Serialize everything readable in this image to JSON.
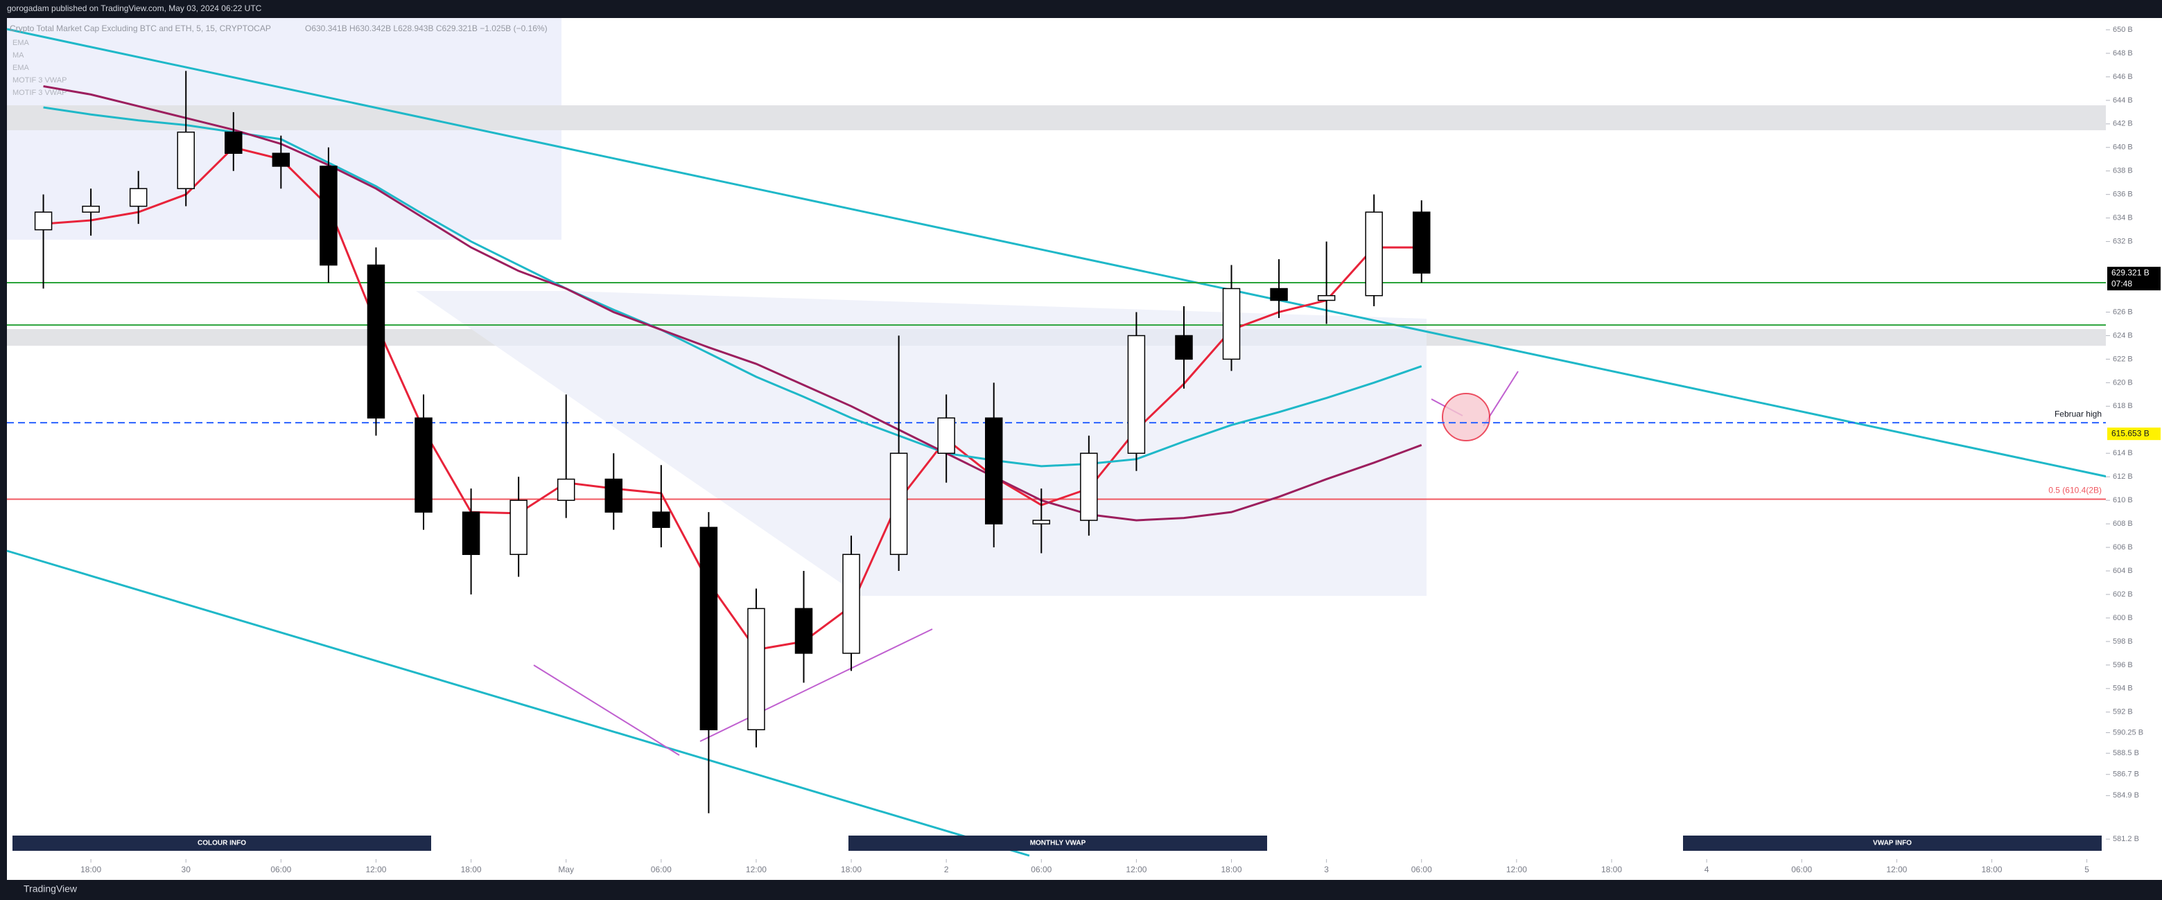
{
  "header": {
    "publisher": "gorogadam published on TradingView.com, May 03, 2024 06:22 UTC"
  },
  "legend_items": [
    "EMA",
    "MA",
    "EMA",
    "MOTIF 3 VWAP",
    "MOTIF 3 VWAP"
  ],
  "buttons": [
    "COLOUR INFO",
    "MONTHLY VWAP",
    "VWAP INFO"
  ],
  "footer": {
    "brand": "TradingView"
  },
  "chart_data": {
    "type": "candlestick",
    "title": "Crypto Total Market Cap Excluding BTC and ETH, 5, 15, CRYPTOCAP",
    "ohlc_summary": "O630.341B H630.342B L628.943B C629.321B −1.025B (−0.16%)",
    "x": [
      -9,
      -6,
      -3,
      0,
      3,
      6,
      9,
      12,
      15,
      18,
      21,
      24,
      27,
      30,
      33,
      36,
      39,
      42,
      45,
      48,
      51,
      54,
      57,
      60,
      63,
      66,
      69,
      72,
      75,
      78
    ],
    "open": [
      633,
      634.5,
      635,
      636.5,
      641.3,
      639.5,
      638.4,
      630,
      617,
      609,
      605.4,
      610,
      611.8,
      609,
      607.7,
      590.5,
      600.8,
      597,
      605.4,
      614,
      617,
      608,
      608.3,
      614,
      624,
      622,
      628,
      627,
      627.4,
      634.5
    ],
    "high": [
      636,
      636.5,
      638,
      646.5,
      643,
      641,
      640,
      631.5,
      619,
      611,
      612,
      619,
      614,
      613,
      609,
      602.5,
      604,
      607,
      624,
      619,
      620,
      611,
      615.5,
      626,
      626.5,
      630,
      630.5,
      632,
      636,
      635.5
    ],
    "low": [
      628,
      632.5,
      633.5,
      635,
      638,
      636.5,
      628.5,
      615.5,
      607.5,
      602,
      603.5,
      608.5,
      607.5,
      606,
      583.4,
      589,
      594.5,
      595.5,
      604,
      611.5,
      606,
      605.5,
      607,
      612.5,
      619.5,
      621,
      625.5,
      625,
      626.5,
      628.5
    ],
    "close": [
      634.5,
      635,
      636.5,
      641.3,
      639.5,
      638.4,
      630,
      617,
      609,
      605.4,
      610,
      611.8,
      609,
      607.7,
      590.5,
      600.8,
      597,
      605.4,
      614,
      617,
      608,
      608.3,
      614,
      624,
      622,
      628,
      627,
      627.4,
      634.5,
      629.321
    ],
    "up_color": "#ffffff",
    "down_color": "#000000",
    "series": [
      {
        "name": "EMA",
        "color": "#e8233a",
        "values": [
          633.5,
          633.8,
          634.5,
          636,
          640,
          639,
          635,
          625,
          616,
          609,
          608.9,
          611.5,
          611,
          610.6,
          603,
          597.3,
          598,
          601,
          610,
          615.2,
          612,
          609.6,
          611,
          616,
          619.9,
          624.5,
          626,
          627,
          631.5,
          631.5
        ]
      },
      {
        "name": "MA",
        "color": "#1fb8c8",
        "values": [
          643.4,
          642.8,
          642.3,
          641.9,
          641.3,
          640.7,
          638.7,
          636.7,
          634.3,
          632,
          630,
          628,
          626.2,
          624.5,
          622.5,
          620.5,
          618.8,
          617,
          615.5,
          614,
          613.4,
          612.9,
          613.1,
          613.5,
          615,
          616.4,
          617.5,
          618.7,
          620,
          621.4
        ]
      },
      {
        "name": "EMA",
        "color": "#9c1f5e",
        "values": [
          645.2,
          644.5,
          643.5,
          642.5,
          641.5,
          640.3,
          638.5,
          636.5,
          634,
          631.5,
          629.5,
          628,
          626,
          624.5,
          623,
          621.6,
          619.8,
          618,
          616,
          614,
          612,
          610,
          608.8,
          608.3,
          608.5,
          609,
          610.3,
          611.8,
          613.2,
          614.7
        ]
      }
    ],
    "levels": [
      {
        "value": 628.5,
        "color": "#2aa33a"
      },
      {
        "value": 624.9,
        "color": "#2aa33a"
      },
      {
        "value": 616.6,
        "color": "#2962ff",
        "label": "Februar high"
      },
      {
        "value": 610.1,
        "color": "#f05860",
        "label": "0.5 (610.4(2B)"
      }
    ],
    "price_badges": [
      {
        "value": 629.321,
        "label": "629.321 B",
        "sublabel": "07:48",
        "color": "#000000"
      },
      {
        "value": 615.653,
        "label": "615.653 B",
        "color": "#fff200"
      }
    ],
    "xlim": [
      -11.3,
      121.2
    ],
    "ylim": [
      579.5,
      651
    ],
    "xticks": [
      {
        "value": -6,
        "label": "18:00"
      },
      {
        "value": 0,
        "label": "30"
      },
      {
        "value": 6,
        "label": "06:00"
      },
      {
        "value": 12,
        "label": "12:00"
      },
      {
        "value": 18,
        "label": "18:00"
      },
      {
        "value": 24,
        "label": "May"
      },
      {
        "value": 30,
        "label": "06:00"
      },
      {
        "value": 36,
        "label": "12:00"
      },
      {
        "value": 42,
        "label": "18:00"
      },
      {
        "value": 48,
        "label": "2"
      },
      {
        "value": 54,
        "label": "06:00"
      },
      {
        "value": 60,
        "label": "12:00"
      },
      {
        "value": 66,
        "label": "18:00"
      },
      {
        "value": 72,
        "label": "3"
      },
      {
        "value": 78,
        "label": "06:00"
      },
      {
        "value": 84,
        "label": "12:00"
      },
      {
        "value": 90,
        "label": "18:00"
      },
      {
        "value": 96,
        "label": "4"
      },
      {
        "value": 102,
        "label": "06:00"
      },
      {
        "value": 108,
        "label": "12:00"
      },
      {
        "value": 114,
        "label": "18:00"
      },
      {
        "value": 120,
        "label": "5"
      }
    ],
    "yticks": [
      {
        "value": 650,
        "label": "650 B"
      },
      {
        "value": 648,
        "label": "648 B"
      },
      {
        "value": 646,
        "label": "646 B"
      },
      {
        "value": 644,
        "label": "644 B"
      },
      {
        "value": 642,
        "label": "642 B"
      },
      {
        "value": 640,
        "label": "640 B"
      },
      {
        "value": 638,
        "label": "638 B"
      },
      {
        "value": 636,
        "label": "636 B"
      },
      {
        "value": 634,
        "label": "634 B"
      },
      {
        "value": 632,
        "label": "632 B"
      },
      {
        "value": 626,
        "label": "626 B"
      },
      {
        "value": 624,
        "label": "624 B"
      },
      {
        "value": 622,
        "label": "622 B"
      },
      {
        "value": 620,
        "label": "620 B"
      },
      {
        "value": 618,
        "label": "618 B"
      },
      {
        "value": 614,
        "label": "614 B"
      },
      {
        "value": 612,
        "label": "612 B"
      },
      {
        "value": 610,
        "label": "610 B"
      },
      {
        "value": 608,
        "label": "608 B"
      },
      {
        "value": 606,
        "label": "606 B"
      },
      {
        "value": 604,
        "label": "604 B"
      },
      {
        "value": 602,
        "label": "602 B"
      },
      {
        "value": 600,
        "label": "600 B"
      },
      {
        "value": 598,
        "label": "598 B"
      },
      {
        "value": 596,
        "label": "596 B"
      },
      {
        "value": 594,
        "label": "594 B"
      },
      {
        "value": 592,
        "label": "592 B"
      },
      {
        "value": 590.25,
        "label": "590.25 B"
      },
      {
        "value": 588.5,
        "label": "588.5 B"
      },
      {
        "value": 586.7,
        "label": "586.7 B"
      },
      {
        "value": 584.9,
        "label": "584.9 B"
      },
      {
        "value": 581.2,
        "label": "581.2 B"
      }
    ],
    "grid": false
  }
}
